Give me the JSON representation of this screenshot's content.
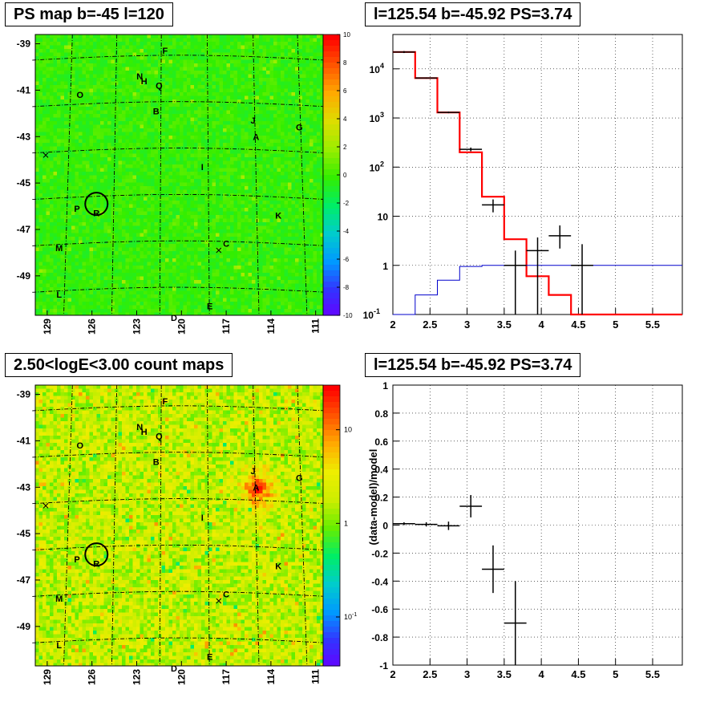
{
  "panels": {
    "ps_map": {
      "title": "PS map b=-45 l=120",
      "colorbar_ticks": [
        "10",
        "8",
        "6",
        "4",
        "2",
        "0",
        "-2",
        "-4",
        "-6",
        "-8",
        "-10"
      ],
      "y_ticks": [
        "-39",
        "-41",
        "-43",
        "-45",
        "-47",
        "-49"
      ],
      "x_ticks": [
        "129",
        "126",
        "123",
        "120",
        "117",
        "114",
        "111"
      ]
    },
    "spectrum": {
      "title": "l=125.54 b=-45.92 PS=3.74",
      "y_ticks": [
        "10^4",
        "10^3",
        "10^2",
        "10",
        "1",
        "10^-1"
      ],
      "x_ticks": [
        "2",
        "2.5",
        "3",
        "3.5",
        "4",
        "4.5",
        "5",
        "5.5"
      ]
    },
    "count_map": {
      "title": "2.50<logE<3.00 count maps",
      "colorbar_ticks": [
        "10",
        "1",
        "10^-1"
      ],
      "y_ticks": [
        "-39",
        "-41",
        "-43",
        "-45",
        "-47",
        "-49"
      ],
      "x_ticks": [
        "129",
        "126",
        "123",
        "120",
        "117",
        "114",
        "111"
      ]
    },
    "residual": {
      "title": "l=125.54 b=-45.92 PS=3.74",
      "ylabel": "(data-model)/model",
      "y_ticks": [
        "1",
        "0.8",
        "0.6",
        "0.4",
        "0.2",
        "0",
        "-0.2",
        "-0.4",
        "-0.6",
        "-0.8",
        "-1"
      ],
      "x_ticks": [
        "2",
        "2.5",
        "3",
        "3.5",
        "4",
        "4.5",
        "5",
        "5.5"
      ]
    }
  },
  "sources": [
    {
      "label": "F",
      "l": 121.1,
      "b": -39.3
    },
    {
      "label": "N",
      "l": 122.8,
      "b": -40.4
    },
    {
      "label": "H",
      "l": 122.5,
      "b": -40.6
    },
    {
      "label": "Q",
      "l": 121.5,
      "b": -40.8
    },
    {
      "label": "O",
      "l": 126.8,
      "b": -41.2
    },
    {
      "label": "B",
      "l": 121.7,
      "b": -41.9
    },
    {
      "label": "J",
      "l": 115.2,
      "b": -42.3
    },
    {
      "label": "G",
      "l": 112.1,
      "b": -42.6
    },
    {
      "label": "A",
      "l": 115.0,
      "b": -43.0
    },
    {
      "label": "I",
      "l": 118.6,
      "b": -44.3
    },
    {
      "label": "P",
      "l": 127.0,
      "b": -46.1
    },
    {
      "label": "R",
      "l": 125.7,
      "b": -46.3
    },
    {
      "label": "K",
      "l": 113.5,
      "b": -46.4
    },
    {
      "label": "C",
      "l": 117.0,
      "b": -47.6
    },
    {
      "label": "M",
      "l": 128.2,
      "b": -47.8
    },
    {
      "label": "L",
      "l": 128.2,
      "b": -49.8
    },
    {
      "label": "E",
      "l": 118.1,
      "b": -50.3
    },
    {
      "label": "D",
      "l": 120.5,
      "b": -50.8
    }
  ],
  "markers": {
    "circle": {
      "l": 125.7,
      "b": -45.9
    },
    "crosses": [
      {
        "l": 129.1,
        "b": -43.8
      },
      {
        "l": 117.5,
        "b": -47.9
      }
    ]
  },
  "chart_data": [
    {
      "type": "heatmap",
      "panel": "ps_map",
      "title": "PS map b=-45 l=120",
      "x_range": [
        129.8,
        110.5
      ],
      "y_range": [
        -50.7,
        -38.6
      ],
      "color_range": [
        -10,
        10
      ],
      "colormap": [
        "#6600ff",
        "#3333ff",
        "#0099ff",
        "#00cccc",
        "#00ee66",
        "#33ee00",
        "#99ee00",
        "#dddd00",
        "#ffaa00",
        "#ff5500",
        "#ff0000"
      ]
    },
    {
      "type": "line",
      "panel": "spectrum",
      "title": "l=125.54 b=-45.92 PS=3.74",
      "xlim": [
        2,
        5.9
      ],
      "ylim": [
        0.1,
        50000
      ],
      "yscale": "log",
      "grid": true,
      "bin_edges": [
        2.0,
        2.3,
        2.6,
        2.9,
        3.2,
        3.5,
        3.8,
        4.1,
        4.4,
        4.7,
        5.0,
        5.3,
        5.6,
        5.9
      ],
      "series": [
        {
          "color": "#ff0000",
          "values": [
            22000,
            6500,
            1300,
            200,
            25,
            3.4,
            0.6,
            0.25,
            0.1,
            0.1,
            0.1,
            0.1,
            0.1
          ]
        },
        {
          "color": "#0000cc",
          "values": [
            0.1,
            0.25,
            0.5,
            0.95,
            1.0,
            1.0,
            1.0,
            1.0,
            1.0,
            1.0,
            1.0,
            1.0,
            1.0
          ]
        }
      ],
      "data_points": [
        {
          "x": 2.15,
          "y": 22000,
          "xerr": 0.15,
          "ylo": 21000,
          "yhi": 23000
        },
        {
          "x": 2.45,
          "y": 6500,
          "xerr": 0.15,
          "ylo": 6300,
          "yhi": 6700
        },
        {
          "x": 2.75,
          "y": 1300,
          "xerr": 0.15,
          "ylo": 1250,
          "yhi": 1350
        },
        {
          "x": 3.05,
          "y": 230,
          "xerr": 0.15,
          "ylo": 210,
          "yhi": 250
        },
        {
          "x": 3.35,
          "y": 17,
          "xerr": 0.15,
          "ylo": 12,
          "yhi": 22
        },
        {
          "x": 3.65,
          "y": 1.0,
          "xerr": 0.15,
          "ylo": 0.1,
          "yhi": 2.0
        },
        {
          "x": 3.95,
          "y": 2.0,
          "xerr": 0.15,
          "ylo": 0.1,
          "yhi": 3.7
        },
        {
          "x": 4.25,
          "y": 4.0,
          "xerr": 0.15,
          "ylo": 2.2,
          "yhi": 6.5
        },
        {
          "x": 4.55,
          "y": 1.0,
          "xerr": 0.15,
          "ylo": 0.1,
          "yhi": 2.7
        }
      ]
    },
    {
      "type": "heatmap",
      "panel": "count_map",
      "title": "2.50<logE<3.00 count maps",
      "x_range": [
        129.8,
        110.5
      ],
      "y_range": [
        -50.7,
        -38.6
      ],
      "color_range": [
        0.03,
        30
      ],
      "color_scale": "log",
      "colormap": [
        "#6600ff",
        "#3333ff",
        "#0099ff",
        "#00cccc",
        "#00ee66",
        "#66ee00",
        "#ccee00",
        "#eeee00",
        "#ffaa00",
        "#ff5500",
        "#ff0000"
      ],
      "hotspot": {
        "label": "A",
        "l": 115.0,
        "b": -43.0
      }
    },
    {
      "type": "scatter",
      "panel": "residual",
      "title": "l=125.54 b=-45.92 PS=3.74",
      "ylabel": "(data-model)/model",
      "xlim": [
        2,
        5.9
      ],
      "ylim": [
        -1,
        1
      ],
      "grid": true,
      "points": [
        {
          "x": 2.15,
          "y": 0.01,
          "xerr": 0.15,
          "yerr": 0.01
        },
        {
          "x": 2.45,
          "y": 0.005,
          "xerr": 0.15,
          "yerr": 0.015
        },
        {
          "x": 2.75,
          "y": -0.005,
          "xerr": 0.15,
          "yerr": 0.03
        },
        {
          "x": 3.05,
          "y": 0.135,
          "xerr": 0.15,
          "yerr": 0.08
        },
        {
          "x": 3.35,
          "y": -0.315,
          "xerr": 0.15,
          "yerr": 0.17
        },
        {
          "x": 3.65,
          "y": -0.7,
          "xerr": 0.15,
          "yerr": 0.3
        }
      ]
    }
  ]
}
